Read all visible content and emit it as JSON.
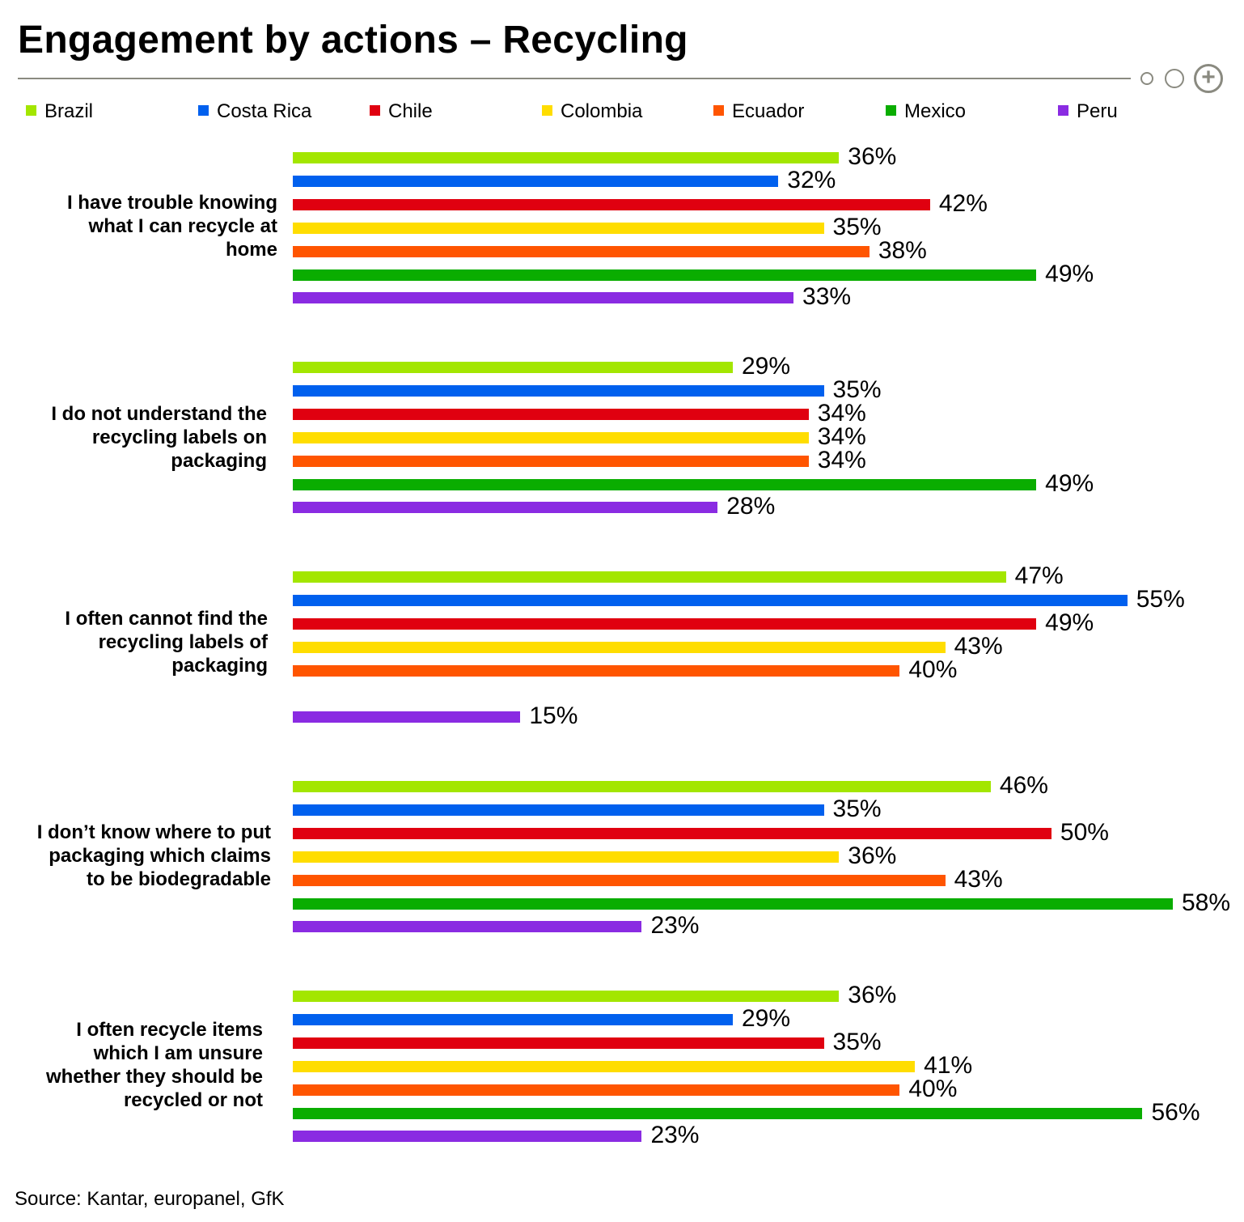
{
  "header": {
    "title": "Engagement by actions – Recycling",
    "plus_symbol": "+"
  },
  "chart_data": {
    "type": "bar",
    "orientation": "horizontal",
    "title": "Engagement by actions – Recycling",
    "legend_position": "top",
    "categories": [
      "I have trouble knowing\nwhat I can recycle at\nhome",
      "I do not understand the\nrecycling labels on\npackaging",
      "I  often cannot find the\nrecycling labels of\npackaging",
      "I don’t know where to put\npackaging which claims\nto be biodegradable",
      "I often recycle items\nwhich I am unsure\nwhether they should be\nrecycled or not"
    ],
    "series": [
      {
        "name": "Brazil",
        "color": "#a3e600",
        "values": [
          36,
          29,
          47,
          46,
          36
        ]
      },
      {
        "name": "Costa Rica",
        "color": "#0060ee",
        "values": [
          32,
          35,
          55,
          35,
          29
        ]
      },
      {
        "name": "Chile",
        "color": "#e00010",
        "values": [
          42,
          34,
          49,
          50,
          35
        ]
      },
      {
        "name": "Colombia",
        "color": "#ffdd00",
        "values": [
          35,
          34,
          43,
          36,
          41
        ]
      },
      {
        "name": "Ecuador",
        "color": "#ff5500",
        "values": [
          38,
          34,
          40,
          43,
          40
        ]
      },
      {
        "name": "Mexico",
        "color": "#0aad00",
        "values": [
          49,
          49,
          null,
          58,
          56
        ]
      },
      {
        "name": "Peru",
        "color": "#8a2be2",
        "values": [
          33,
          28,
          15,
          23,
          23
        ]
      }
    ],
    "value_suffix": "%",
    "xlim": [
      0,
      58
    ]
  },
  "footer": {
    "source": "Source: Kantar, europanel, GfK"
  }
}
